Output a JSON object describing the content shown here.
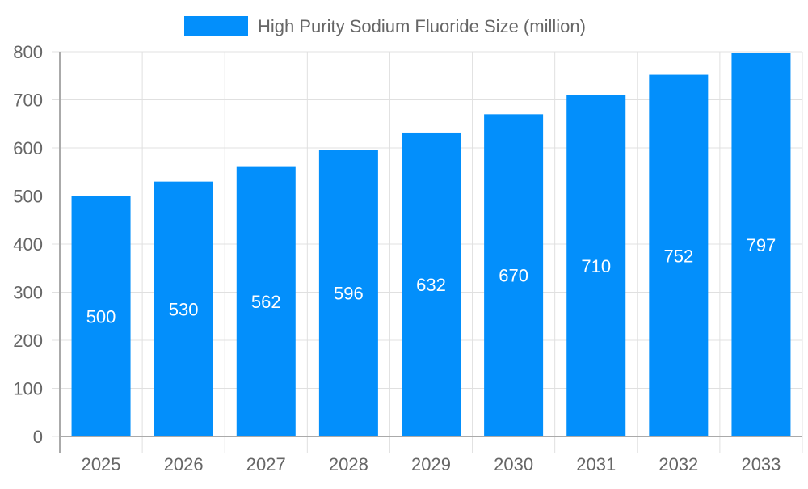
{
  "chart_data": {
    "type": "bar",
    "title": "",
    "xlabel": "",
    "ylabel": "",
    "categories": [
      "2025",
      "2026",
      "2027",
      "2028",
      "2029",
      "2030",
      "2031",
      "2032",
      "2033"
    ],
    "series": [
      {
        "name": "High Purity Sodium Fluoride Size (million)",
        "values": [
          500,
          530,
          562,
          596,
          632,
          670,
          710,
          752,
          797
        ],
        "color": "#038ffb"
      }
    ],
    "ylim": [
      0,
      800
    ],
    "yticks": [
      0,
      100,
      200,
      300,
      400,
      500,
      600,
      700,
      800
    ],
    "grid": true,
    "legend": "top-center",
    "data_labels": true
  }
}
